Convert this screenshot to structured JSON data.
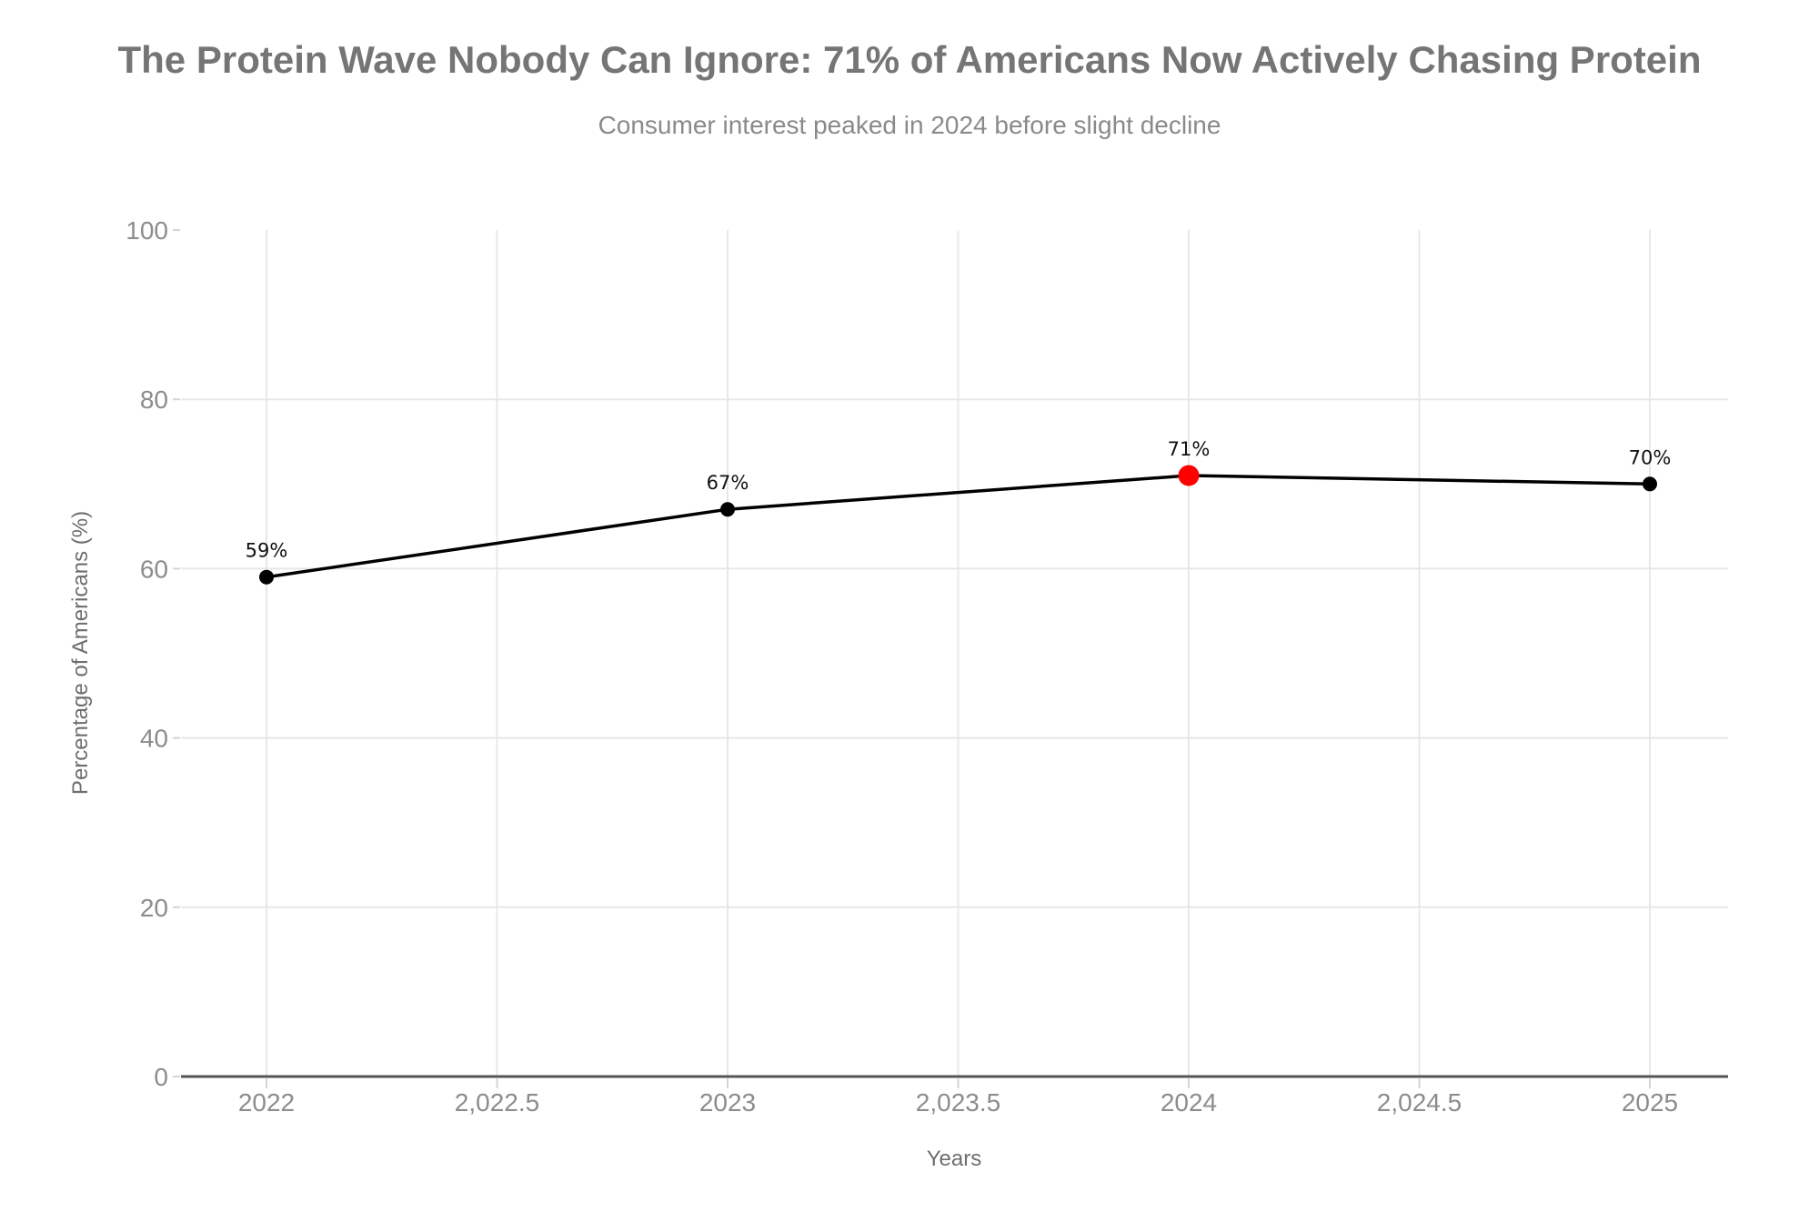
{
  "header": {
    "title": "The Protein Wave Nobody Can Ignore: 71% of Americans Now Actively Chasing Protein",
    "subtitle": "Consumer interest peaked in 2024 before slight decline"
  },
  "chart_data": {
    "type": "line",
    "title": "The Protein Wave Nobody Can Ignore: 71% of Americans Now Actively Chasing Protein",
    "subtitle": "Consumer interest peaked in 2024 before slight decline",
    "xlabel": "Years",
    "ylabel": "Percentage of Americans (%)",
    "x": [
      2022,
      2023,
      2024,
      2025
    ],
    "series": [
      {
        "name": "Percentage of Americans",
        "values": [
          59,
          67,
          71,
          70
        ]
      }
    ],
    "point_labels": [
      "59%",
      "67%",
      "71%",
      "70%"
    ],
    "xticks": [
      {
        "value": 2022,
        "label": "2022"
      },
      {
        "value": 2022.5,
        "label": "2,022.5"
      },
      {
        "value": 2023,
        "label": "2023"
      },
      {
        "value": 2023.5,
        "label": "2,023.5"
      },
      {
        "value": 2024,
        "label": "2024"
      },
      {
        "value": 2024.5,
        "label": "2,024.5"
      },
      {
        "value": 2025,
        "label": "2025"
      }
    ],
    "yticks": [
      0,
      20,
      40,
      60,
      80,
      100
    ],
    "ylim": [
      0,
      100
    ],
    "grid": {
      "horizontal_at": [
        20,
        40,
        60,
        80
      ],
      "vertical": "at-every-xtick",
      "gridlines_on": true
    },
    "legend": "none",
    "highlight_point": {
      "x": 2024,
      "value": 71,
      "color": "#ff0000"
    },
    "colors": {
      "line": "#000000",
      "marker": "#000000",
      "highlight_marker": "#ff0000",
      "title": "#757575",
      "subtitle": "#8a8a8a",
      "tick_label": "#8c8c8c",
      "axis_title": "#6e6e6e",
      "axis_line": "#555555",
      "gridline": "#e8e8e8",
      "tick_mark": "#d4d4d4",
      "background": "#ffffff"
    }
  }
}
